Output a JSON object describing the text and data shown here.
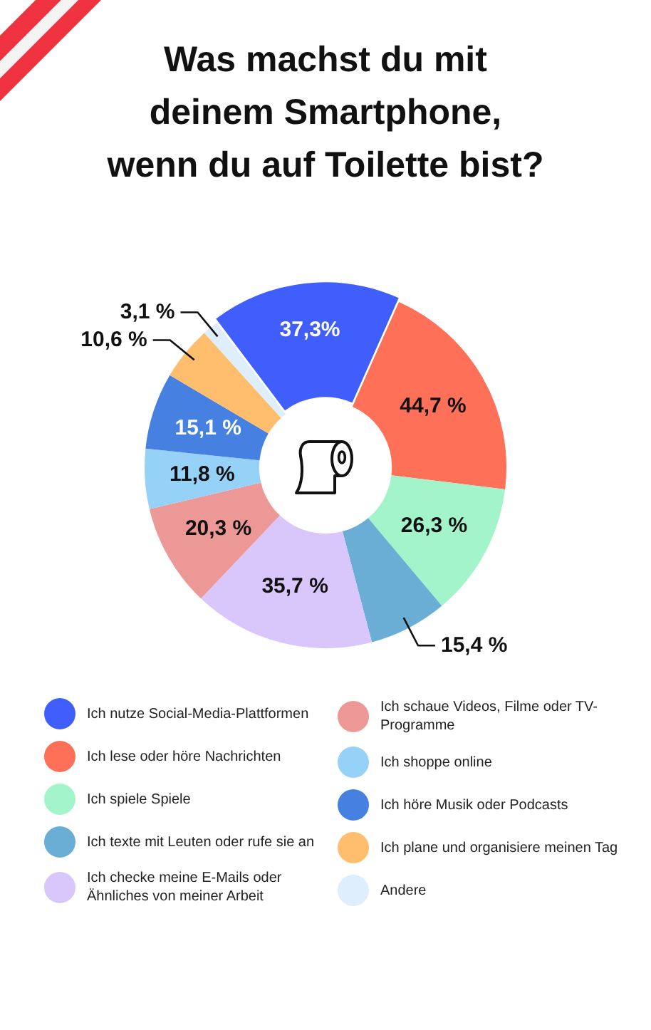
{
  "chart_data": {
    "type": "donut",
    "title": "Was machst du mit deinem Smartphone, wenn du auf Toilette bist?",
    "categories": [
      "Ich nutze Social-Media-Plattformen",
      "Ich lese oder höre Nachrichten",
      "Ich spiele Spiele",
      "Ich texte mit Leuten oder rufe sie an",
      "Ich checke meine E-Mails oder Ähnliches von meiner Arbeit",
      "Ich schaue Videos, Filme oder TV-Programme",
      "Ich shoppe online",
      "Ich höre Musik oder Podcasts",
      "Ich plane und organisiere meinen Tag",
      "Andere"
    ],
    "values": [
      37.3,
      44.7,
      26.3,
      15.4,
      35.7,
      20.3,
      11.8,
      15.1,
      10.6,
      3.1
    ],
    "colors": [
      "#3f5efb",
      "#ff7059",
      "#a3f4cb",
      "#6aaed6",
      "#d9c6fb",
      "#eb9896",
      "#96d1f8",
      "#4680e0",
      "#ffbd6e",
      "#deeefc"
    ],
    "value_labels": [
      "37,3%",
      "44,7 %",
      "26,3 %",
      "15,4 %",
      "35,7 %",
      "20,3 %",
      "11,8 %",
      "15,1 %",
      "10,6 %",
      "3,1 %"
    ],
    "legend": "bottom"
  }
}
